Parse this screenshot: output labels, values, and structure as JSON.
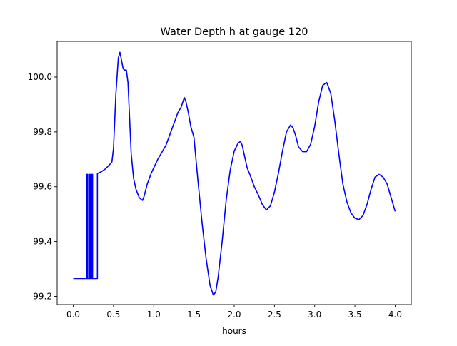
{
  "chart_data": {
    "type": "line",
    "title": "Water Depth h at gauge 120",
    "xlabel": "hours",
    "ylabel": "",
    "xlim": [
      -0.2,
      4.2
    ],
    "ylim": [
      99.17,
      100.13
    ],
    "xticks": [
      0.0,
      0.5,
      1.0,
      1.5,
      2.0,
      2.5,
      3.0,
      3.5,
      4.0
    ],
    "xtick_labels": [
      "0.0",
      "0.5",
      "1.0",
      "1.5",
      "2.0",
      "2.5",
      "3.0",
      "3.5",
      "4.0"
    ],
    "yticks": [
      99.2,
      99.4,
      99.6,
      99.8,
      100.0
    ],
    "ytick_labels": [
      "99.2",
      "99.4",
      "99.6",
      "99.8",
      "100.0"
    ],
    "grid": false,
    "legend": "none",
    "series": [
      {
        "color": "#0000ff",
        "x": [
          0.0,
          0.17,
          0.17,
          0.18,
          0.18,
          0.2,
          0.2,
          0.21,
          0.21,
          0.23,
          0.23,
          0.24,
          0.24,
          0.3,
          0.3,
          0.35,
          0.4,
          0.45,
          0.48,
          0.5,
          0.53,
          0.56,
          0.58,
          0.6,
          0.62,
          0.64,
          0.66,
          0.68,
          0.7,
          0.72,
          0.75,
          0.78,
          0.82,
          0.86,
          0.88,
          0.92,
          0.97,
          1.05,
          1.15,
          1.2,
          1.25,
          1.3,
          1.34,
          1.38,
          1.4,
          1.43,
          1.46,
          1.5,
          1.55,
          1.6,
          1.65,
          1.7,
          1.74,
          1.77,
          1.8,
          1.85,
          1.9,
          1.95,
          2.0,
          2.05,
          2.08,
          2.1,
          2.13,
          2.16,
          2.2,
          2.25,
          2.3,
          2.35,
          2.4,
          2.45,
          2.5,
          2.55,
          2.6,
          2.65,
          2.7,
          2.73,
          2.76,
          2.8,
          2.85,
          2.9,
          2.95,
          3.0,
          3.05,
          3.1,
          3.15,
          3.2,
          3.25,
          3.3,
          3.35,
          3.4,
          3.45,
          3.5,
          3.55,
          3.6,
          3.65,
          3.7,
          3.75,
          3.8,
          3.85,
          3.9,
          3.95,
          4.0
        ],
        "y": [
          99.265,
          99.265,
          99.645,
          99.645,
          99.265,
          99.265,
          99.645,
          99.645,
          99.265,
          99.265,
          99.645,
          99.645,
          99.265,
          99.265,
          99.648,
          99.655,
          99.665,
          99.68,
          99.69,
          99.74,
          99.94,
          100.07,
          100.09,
          100.06,
          100.03,
          100.025,
          100.025,
          99.98,
          99.85,
          99.72,
          99.63,
          99.59,
          99.56,
          99.55,
          99.565,
          99.61,
          99.65,
          99.7,
          99.75,
          99.79,
          99.83,
          99.87,
          99.89,
          99.925,
          99.91,
          99.87,
          99.82,
          99.78,
          99.62,
          99.47,
          99.34,
          99.24,
          99.205,
          99.215,
          99.27,
          99.4,
          99.55,
          99.66,
          99.73,
          99.76,
          99.765,
          99.75,
          99.71,
          99.67,
          99.64,
          99.6,
          99.57,
          99.535,
          99.515,
          99.53,
          99.58,
          99.65,
          99.73,
          99.8,
          99.825,
          99.815,
          99.79,
          99.745,
          99.728,
          99.728,
          99.755,
          99.82,
          99.91,
          99.97,
          99.98,
          99.94,
          99.84,
          99.72,
          99.61,
          99.545,
          99.505,
          99.485,
          99.48,
          99.495,
          99.535,
          99.59,
          99.635,
          99.645,
          99.635,
          99.61,
          99.56,
          99.51
        ]
      }
    ]
  }
}
